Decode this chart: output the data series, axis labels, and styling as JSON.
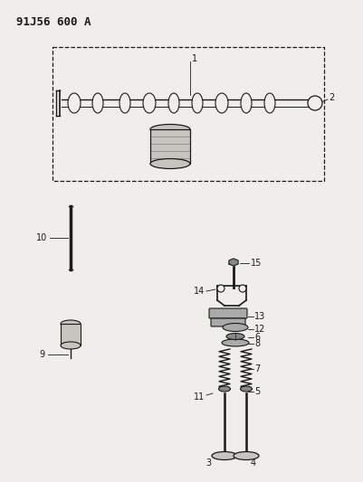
{
  "title": "91J56 600 A",
  "bg_color": "#f0eeea",
  "line_color": "#1a1a1a",
  "fig_width": 4.02,
  "fig_height": 5.33,
  "dpi": 100,
  "gray_part": "#c8c5c0",
  "dark_gray": "#888888",
  "mid_gray": "#aaaaaa"
}
